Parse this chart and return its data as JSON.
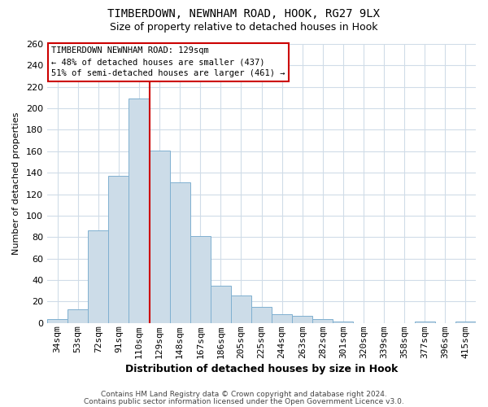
{
  "title1": "TIMBERDOWN, NEWNHAM ROAD, HOOK, RG27 9LX",
  "title2": "Size of property relative to detached houses in Hook",
  "xlabel": "Distribution of detached houses by size in Hook",
  "ylabel": "Number of detached properties",
  "footer1": "Contains HM Land Registry data © Crown copyright and database right 2024.",
  "footer2": "Contains public sector information licensed under the Open Government Licence v3.0.",
  "categories": [
    "34sqm",
    "53sqm",
    "72sqm",
    "91sqm",
    "110sqm",
    "129sqm",
    "148sqm",
    "167sqm",
    "186sqm",
    "205sqm",
    "225sqm",
    "244sqm",
    "263sqm",
    "282sqm",
    "301sqm",
    "320sqm",
    "339sqm",
    "358sqm",
    "377sqm",
    "396sqm",
    "415sqm"
  ],
  "values": [
    4,
    13,
    86,
    137,
    209,
    161,
    131,
    81,
    35,
    26,
    15,
    8,
    7,
    4,
    1,
    0,
    0,
    0,
    1,
    0,
    1
  ],
  "bar_color": "#ccdce8",
  "bar_edge_color": "#7fb0d0",
  "vline_color": "#cc0000",
  "annotation_line1": "TIMBERDOWN NEWNHAM ROAD: 129sqm",
  "annotation_line2": "← 48% of detached houses are smaller (437)",
  "annotation_line3": "51% of semi-detached houses are larger (461) →",
  "annotation_box_color": "#ffffff",
  "annotation_box_edge_color": "#cc0000",
  "ylim": [
    0,
    260
  ],
  "yticks": [
    0,
    20,
    40,
    60,
    80,
    100,
    120,
    140,
    160,
    180,
    200,
    220,
    240,
    260
  ],
  "background_color": "#ffffff",
  "grid_color": "#d0dce8",
  "title1_fontsize": 10,
  "title2_fontsize": 9,
  "xlabel_fontsize": 9,
  "ylabel_fontsize": 8,
  "tick_fontsize": 8,
  "footer_fontsize": 6.5
}
